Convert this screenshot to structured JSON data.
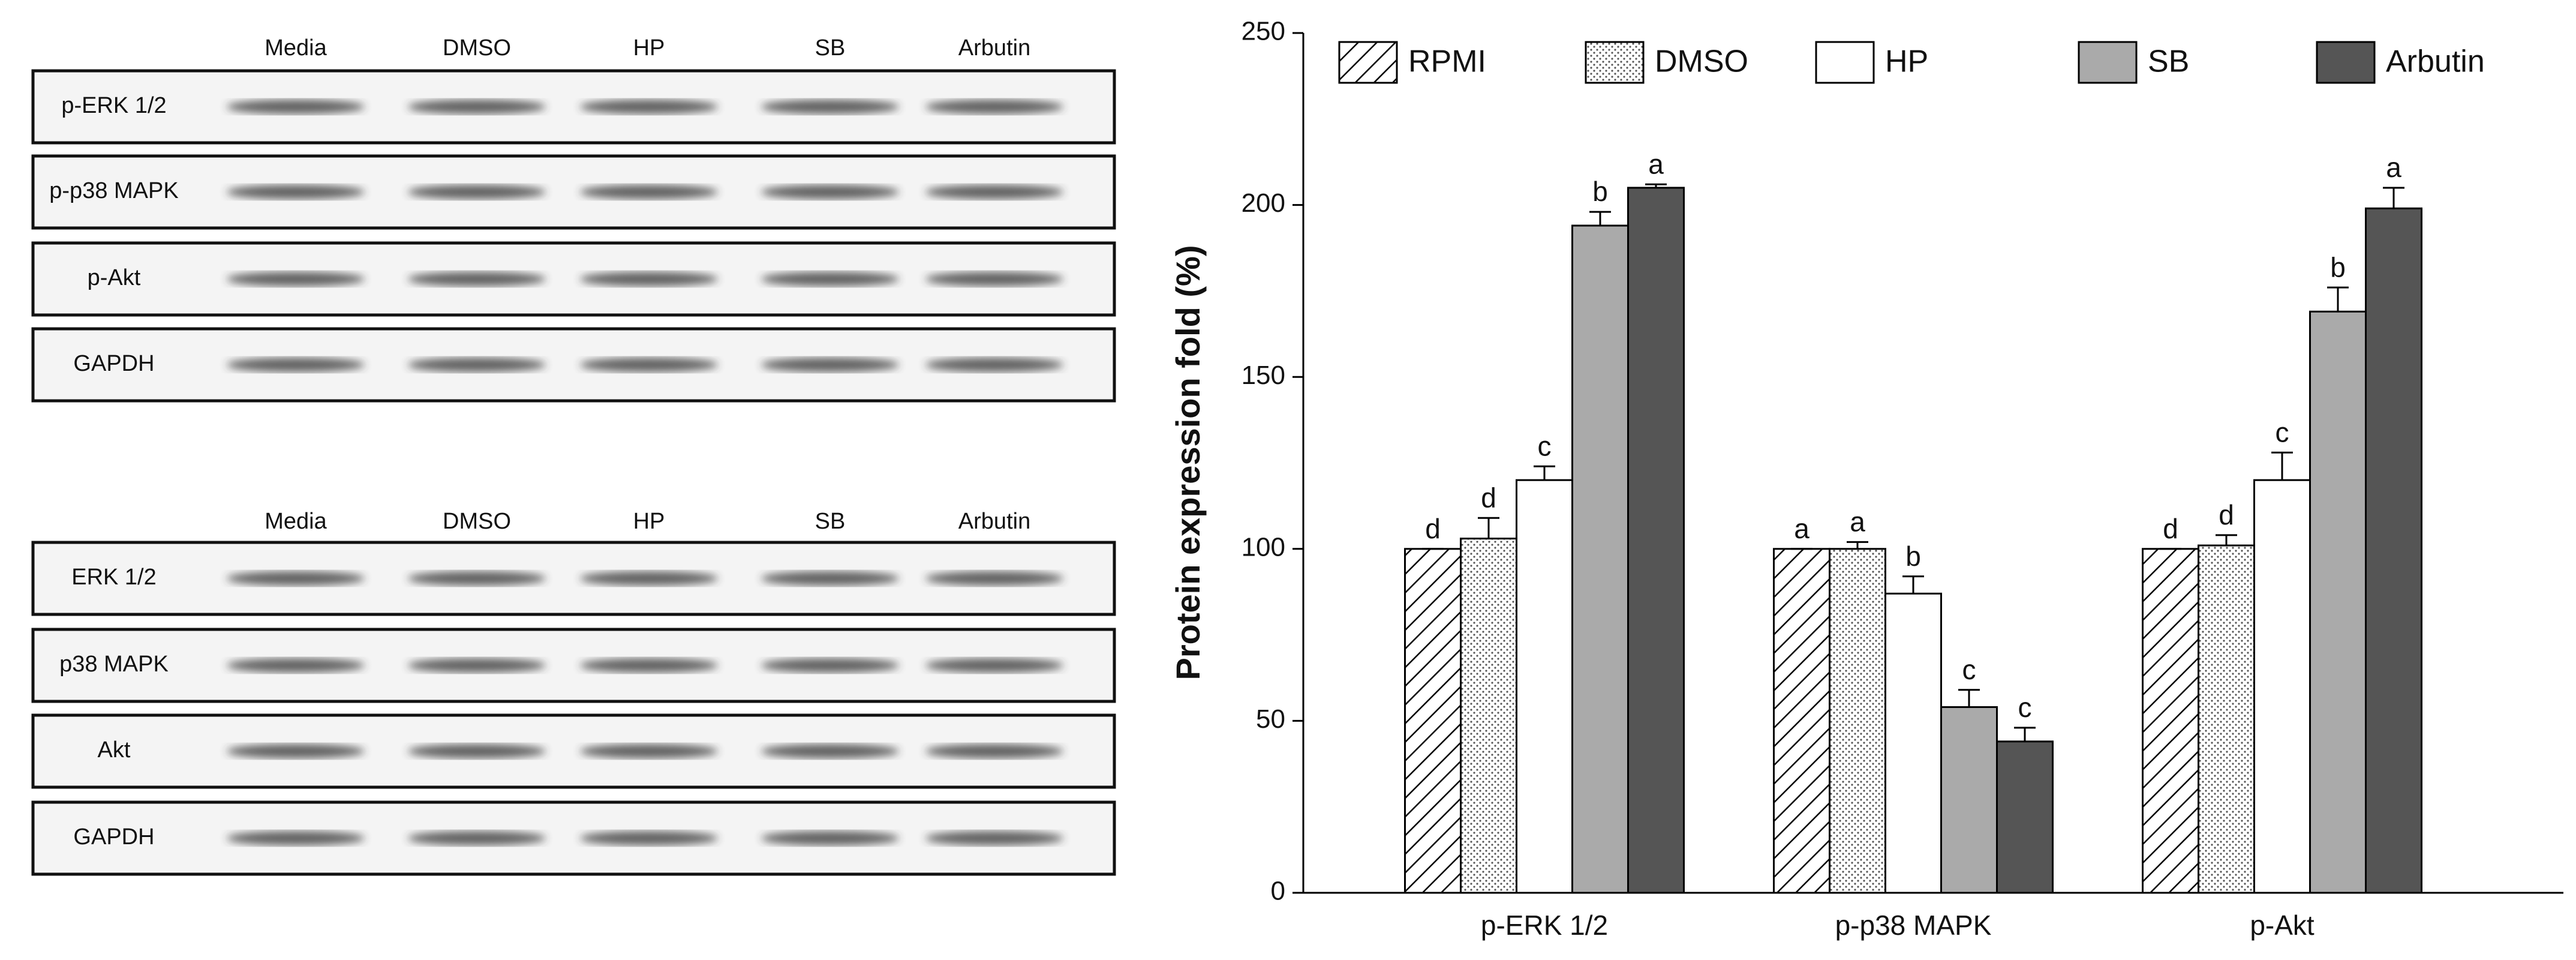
{
  "blots": [
    {
      "lanes": [
        "Media",
        "DMSO",
        "HP",
        "SB",
        "Arbutin"
      ],
      "rows": [
        "p-ERK 1/2",
        "p-p38 MAPK",
        "p-Akt",
        "GAPDH"
      ]
    },
    {
      "lanes": [
        "Media",
        "DMSO",
        "HP",
        "SB",
        "Arbutin"
      ],
      "rows": [
        "ERK 1/2",
        "p38 MAPK",
        "Akt",
        "GAPDH"
      ]
    }
  ],
  "chart_data": {
    "type": "bar",
    "y_label": "Protein expression fold (%)",
    "categories": [
      "p-ERK 1/2",
      "p-p38 MAPK",
      "p-Akt"
    ],
    "series": [
      {
        "name": "RPMI",
        "color": "#ffffff",
        "pattern": "hatch",
        "values": [
          100,
          100,
          100
        ],
        "errors": [
          0,
          0,
          0
        ],
        "labels": [
          "d",
          "a",
          "d"
        ]
      },
      {
        "name": "DMSO",
        "color": "#ffffff",
        "pattern": "dots",
        "values": [
          103,
          100,
          101
        ],
        "errors": [
          6,
          2,
          3
        ],
        "labels": [
          "d",
          "a",
          "d"
        ]
      },
      {
        "name": "HP",
        "color": "#ffffff",
        "values": [
          120,
          87,
          120
        ],
        "errors": [
          4,
          5,
          8
        ],
        "labels": [
          "c",
          "b",
          "c"
        ]
      },
      {
        "name": "SB",
        "color": "#aaaaaa",
        "values": [
          194,
          54,
          169
        ],
        "errors": [
          4,
          5,
          7
        ],
        "labels": [
          "b",
          "c",
          "b"
        ]
      },
      {
        "name": "Arbutin",
        "color": "#555555",
        "values": [
          205,
          44,
          199
        ],
        "errors": [
          1,
          4,
          6
        ],
        "labels": [
          "a",
          "c",
          "a"
        ]
      }
    ],
    "ylim": [
      0,
      250
    ],
    "yticks": [
      0,
      50,
      100,
      150,
      200,
      250
    ],
    "grid": false
  }
}
